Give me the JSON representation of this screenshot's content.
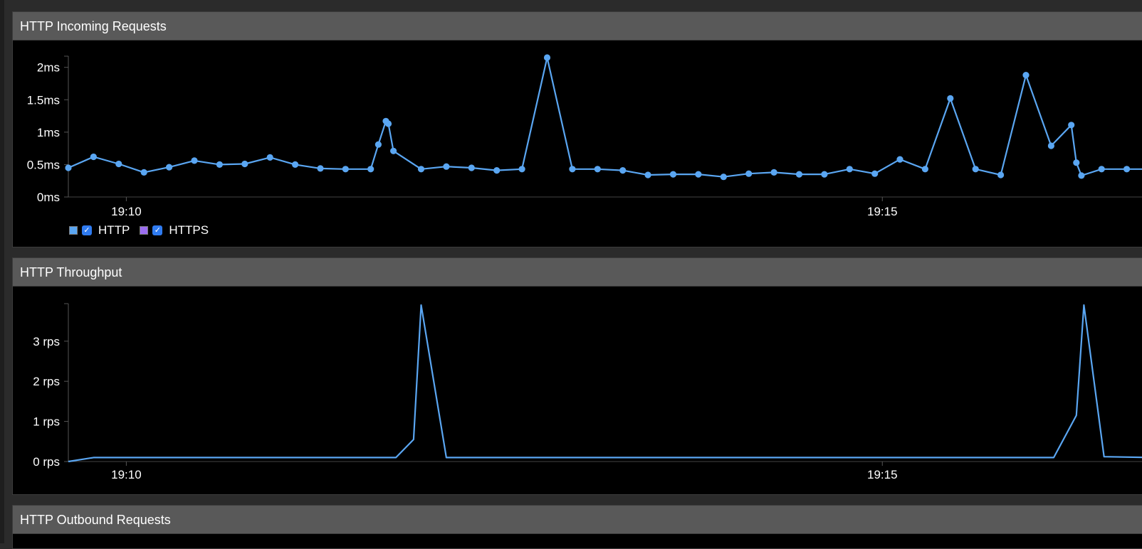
{
  "panels": [
    {
      "title": "HTTP Incoming Requests"
    },
    {
      "title": "HTTP Throughput"
    },
    {
      "title": "HTTP Outbound Requests"
    }
  ],
  "colors": {
    "http": "#5aa6f2",
    "https": "#9b6df0",
    "panel_header": "#595959",
    "background": "#000000"
  },
  "legend": [
    {
      "label": "HTTP",
      "color": "#5aa6f2",
      "checked": true,
      "check_icon": "checkmark-icon"
    },
    {
      "label": "HTTPS",
      "color": "#9b6df0",
      "checked": true,
      "check_icon": "checkmark-icon"
    }
  ],
  "chart_data": [
    {
      "type": "line",
      "title": "HTTP Incoming Requests",
      "x_range": [
        "19:09:37",
        "19:16:47"
      ],
      "x_ticks": [
        "19:10",
        "19:15"
      ],
      "ylim": [
        0,
        2.15
      ],
      "y_ticks": [
        0,
        0.5,
        1,
        1.5,
        2
      ],
      "y_tick_labels": [
        "0ms",
        "0.5ms",
        "1ms",
        "1.5ms",
        "2ms"
      ],
      "markers": true,
      "series": [
        {
          "name": "HTTP",
          "x": [
            "19:09:37",
            "19:09:47",
            "19:09:57",
            "19:10:07",
            "19:10:17",
            "19:10:27",
            "19:10:37",
            "19:10:47",
            "19:10:57",
            "19:11:07",
            "19:11:17",
            "19:11:27",
            "19:11:37",
            "19:11:40",
            "19:11:43",
            "19:11:44",
            "19:11:46",
            "19:11:57",
            "19:12:07",
            "19:12:17",
            "19:12:27",
            "19:12:37",
            "19:12:47",
            "19:12:57",
            "19:13:07",
            "19:13:17",
            "19:13:27",
            "19:13:37",
            "19:13:47",
            "19:13:57",
            "19:14:07",
            "19:14:17",
            "19:14:27",
            "19:14:37",
            "19:14:47",
            "19:14:57",
            "19:15:07",
            "19:15:17",
            "19:15:27",
            "19:15:37",
            "19:15:47",
            "19:15:57",
            "19:16:07",
            "19:16:15",
            "19:16:17",
            "19:16:19",
            "19:16:27",
            "19:16:37",
            "19:16:47"
          ],
          "values": [
            0.45,
            0.62,
            0.51,
            0.38,
            0.46,
            0.56,
            0.5,
            0.51,
            0.61,
            0.5,
            0.44,
            0.43,
            0.43,
            0.81,
            1.17,
            1.13,
            0.71,
            0.43,
            0.47,
            0.45,
            0.41,
            0.43,
            2.15,
            0.43,
            0.43,
            0.41,
            0.34,
            0.35,
            0.35,
            0.31,
            0.36,
            0.38,
            0.35,
            0.35,
            0.43,
            0.36,
            0.58,
            0.43,
            1.52,
            0.43,
            0.34,
            1.88,
            0.79,
            1.11,
            0.53,
            0.33,
            0.43,
            0.43,
            0.43
          ]
        }
      ]
    },
    {
      "type": "line",
      "title": "HTTP Throughput",
      "x_range": [
        "19:09:37",
        "19:16:47"
      ],
      "x_ticks": [
        "19:10",
        "19:15"
      ],
      "ylim": [
        0,
        3.9
      ],
      "y_ticks": [
        0,
        1,
        2,
        3
      ],
      "y_tick_labels": [
        "0 rps",
        "1 rps",
        "2 rps",
        "3 rps"
      ],
      "markers": false,
      "series": [
        {
          "name": "HTTP",
          "x": [
            "19:09:37",
            "19:09:47",
            "19:11:47",
            "19:11:54",
            "19:11:57",
            "19:12:07",
            "19:16:08",
            "19:16:17",
            "19:16:20",
            "19:16:28",
            "19:16:47"
          ],
          "values": [
            0,
            0.1,
            0.1,
            0.55,
            3.9,
            0.1,
            0.1,
            1.15,
            3.9,
            0.12,
            0.1
          ]
        }
      ]
    }
  ]
}
